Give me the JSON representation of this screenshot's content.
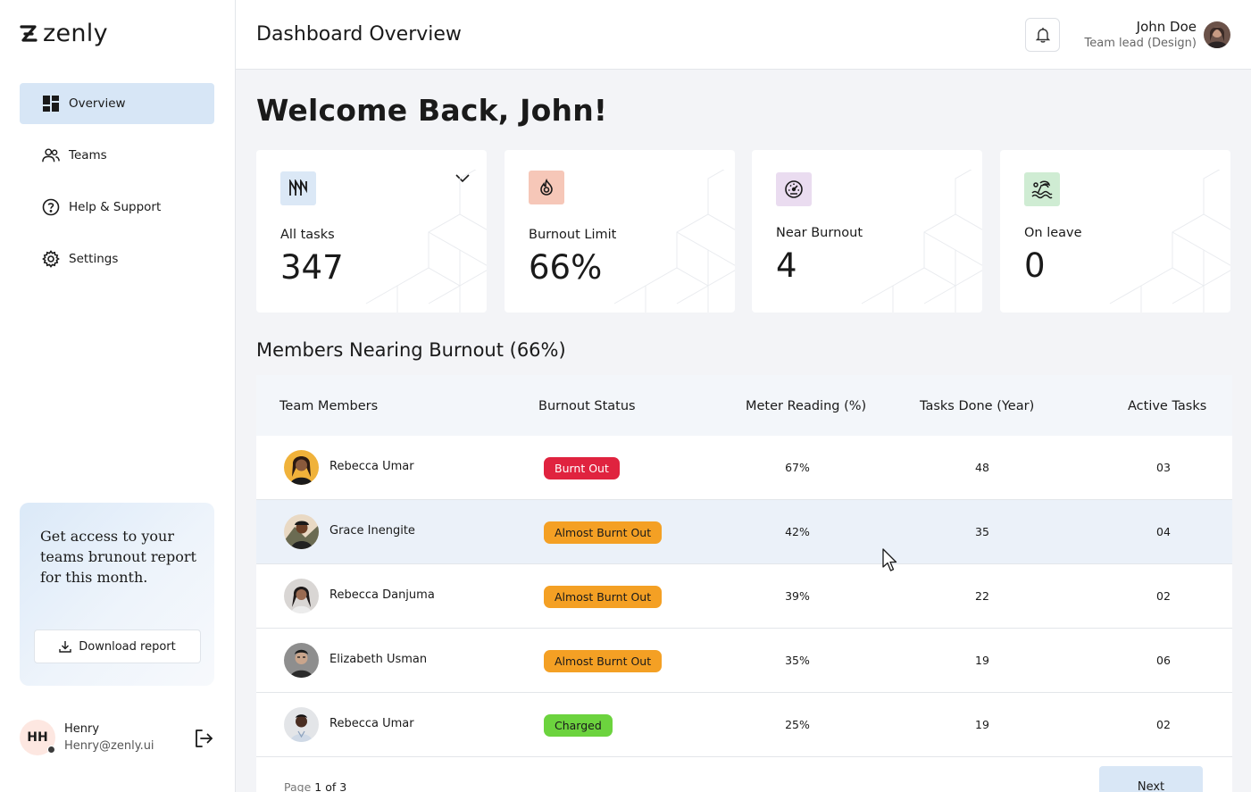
{
  "brand": {
    "name": "zenly"
  },
  "sidebar": {
    "items": [
      {
        "label": "Overview",
        "icon": "grid-icon",
        "active": true
      },
      {
        "label": "Teams",
        "icon": "users-icon",
        "active": false
      },
      {
        "label": "Help & Support",
        "icon": "question-icon",
        "active": false
      },
      {
        "label": "Settings",
        "icon": "gear-icon",
        "active": false
      }
    ],
    "promo": {
      "text": "Get access to your teams brunout report for this month.",
      "button_label": "Download report"
    },
    "footer_user": {
      "initials": "HH",
      "name": "Henry",
      "email": "Henry@zenly.ui"
    }
  },
  "header": {
    "title": "Dashboard Overview",
    "user_name": "John Doe",
    "user_role": "Team lead (Design)"
  },
  "main": {
    "welcome": "Welcome  Back, John!",
    "cards": [
      {
        "label": "All tasks",
        "value": "347",
        "icon": "tasks-icon",
        "icon_bg": "#dbe8f6"
      },
      {
        "label": "Burnout Limit",
        "value": "66%",
        "icon": "flame-icon",
        "icon_bg": "#f6c7b8"
      },
      {
        "label": "Near Burnout",
        "value": "4",
        "icon": "gauge-icon",
        "icon_bg": "#eadcf0"
      },
      {
        "label": "On leave",
        "value": "0",
        "icon": "beach-icon",
        "icon_bg": "#cfecd3"
      }
    ],
    "section_title": "Members Nearing Burnout (66%)",
    "table": {
      "headers": [
        "Team Members",
        "Burnout Status",
        "Meter Reading (%)",
        "Tasks Done (Year)",
        "Active Tasks"
      ],
      "rows": [
        {
          "name": "Rebecca Umar",
          "status": "Burnt Out",
          "status_type": "burnt",
          "meter": "67%",
          "done": "48",
          "active": "03"
        },
        {
          "name": "Grace Inengite",
          "status": "Almost Burnt Out",
          "status_type": "almost",
          "meter": "42%",
          "done": "35",
          "active": "04"
        },
        {
          "name": "Rebecca Danjuma",
          "status": "Almost Burnt Out",
          "status_type": "almost",
          "meter": "39%",
          "done": "22",
          "active": "02"
        },
        {
          "name": "Elizabeth Usman",
          "status": "Almost Burnt Out",
          "status_type": "almost",
          "meter": "35%",
          "done": "19",
          "active": "06"
        },
        {
          "name": "Rebecca Umar",
          "status": "Charged",
          "status_type": "charged",
          "meter": "25%",
          "done": "19",
          "active": "02"
        }
      ]
    },
    "pager": {
      "prefix": "Page",
      "current": "1",
      "mid": "of",
      "total": "3"
    },
    "next_label": "Next"
  }
}
